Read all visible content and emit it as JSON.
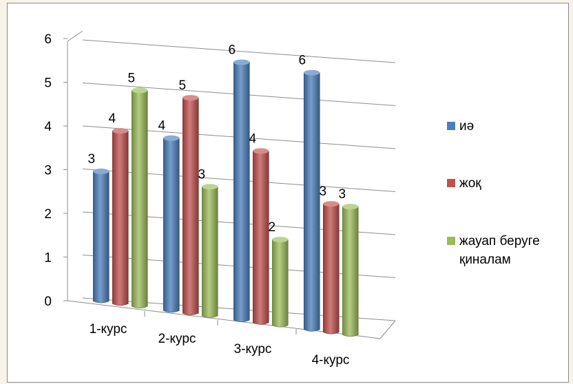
{
  "chart_data": {
    "type": "bar",
    "categories": [
      "1-курс",
      "2-курс",
      "3-курс",
      "4-курс"
    ],
    "series": [
      {
        "name": "иә",
        "values": [
          3,
          4,
          6,
          6
        ],
        "color": "#4a7ebb"
      },
      {
        "name": "жоқ",
        "values": [
          4,
          5,
          4,
          3
        ],
        "color": "#c0504d"
      },
      {
        "name": "жауап беруге қиналам",
        "values": [
          5,
          3,
          2,
          3
        ],
        "color": "#9bbb59"
      }
    ],
    "data_labels": [
      [
        "3",
        "4",
        "6",
        "6"
      ],
      [
        "4",
        "5",
        "4",
        "3"
      ],
      [
        "5",
        "3",
        "2",
        "3"
      ]
    ],
    "y_ticks": [
      "0",
      "1",
      "2",
      "3",
      "4",
      "5",
      "6"
    ],
    "ylim": [
      0,
      6
    ],
    "grid": true,
    "legend_position": "right",
    "legend_lines": [
      [
        "иә"
      ],
      [
        "жоқ"
      ],
      [
        "жауап беруге",
        "қиналам"
      ]
    ],
    "style": "3d-clustered-column"
  }
}
